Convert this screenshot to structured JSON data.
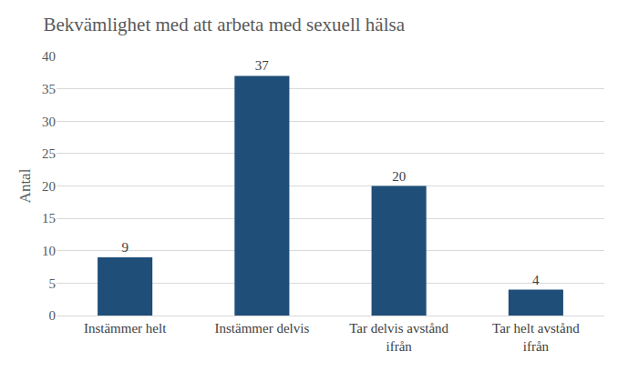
{
  "chart_data": {
    "type": "bar",
    "title": "Bekvämlighet med att arbeta med sexuell hälsa",
    "y_label": "Antal",
    "categories": [
      "Instämmer helt",
      "Instämmer delvis",
      "Tar delvis avstånd ifrån",
      "Tar helt avstånd ifrån"
    ],
    "values": [
      9,
      37,
      20,
      4
    ],
    "color": "#1f4e79",
    "ylim": [
      0,
      40
    ],
    "yticks": [
      0,
      5,
      10,
      15,
      20,
      25,
      30,
      35,
      40
    ],
    "grid": true,
    "data_labels": true
  }
}
